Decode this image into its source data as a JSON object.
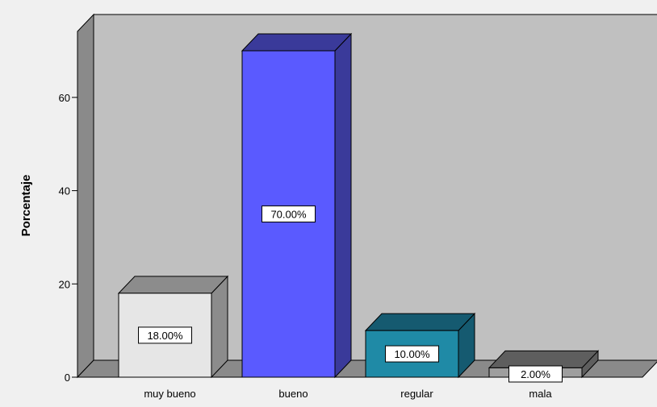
{
  "chart_data": {
    "type": "bar",
    "title": "",
    "xlabel": "",
    "ylabel": "Porcentaje",
    "categories": [
      "muy bueno",
      "bueno",
      "regular",
      "mala"
    ],
    "values": [
      18,
      70,
      10,
      2
    ],
    "data_labels": [
      "18.00%",
      "70.00%",
      "10.00%",
      "2.00%"
    ],
    "ylim": [
      0,
      70
    ],
    "yticks": [
      0,
      20,
      40,
      60
    ],
    "grid": false,
    "legend": "none",
    "style": "3d",
    "colors": {
      "background": "#f0f0f0",
      "back_wall": "#c0c0c0",
      "side_wall": "#8a8a8a",
      "floor": "#8a8a8a",
      "bars": [
        {
          "front": "#e6e6e6",
          "top": "#8c8c8c",
          "side": "#8c8c8c"
        },
        {
          "front": "#5a5aff",
          "top": "#3a3a9a",
          "side": "#3a3a9a"
        },
        {
          "front": "#1f8aa6",
          "top": "#155a70",
          "side": "#155a70"
        },
        {
          "front": "#9e9e9e",
          "top": "#5e5e5e",
          "side": "#5e5e5e"
        }
      ]
    }
  }
}
